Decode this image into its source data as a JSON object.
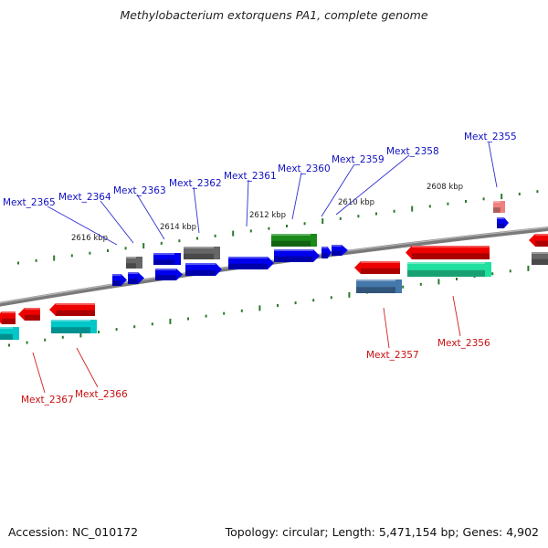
{
  "title": "Methylobacterium extorquens PA1, complete genome",
  "accession": "Accession: NC_010172",
  "topology": "Topology: circular; Length: 5,471,154 bp; Genes: 4,902",
  "kbp_labels": [
    "2616 kbp",
    "2614 kbp",
    "2612 kbp",
    "2610 kbp",
    "2608 kbp"
  ],
  "genes_top": [
    "Mext_2365",
    "Mext_2364",
    "Mext_2363",
    "Mext_2362",
    "Mext_2361",
    "Mext_2360",
    "Mext_2359",
    "Mext_2358",
    "Mext_2355"
  ],
  "genes_bottom": [
    "Mext_2367",
    "Mext_2366",
    "Mext_2357",
    "Mext_2356"
  ],
  "colors": {
    "top_label": "#1010c0",
    "bottom_label": "#c81010",
    "cds_blue": "#0000ee",
    "cds_grey": "#666666",
    "cds_green": "#1a8a1a",
    "cds_red": "#ee0000",
    "cds_cyan": "#00c8c8",
    "cds_steel": "#4477aa",
    "cds_seagreen": "#20e0a0",
    "cds_pink": "#f08080",
    "backbone": "#808080",
    "tick": "#2a7a2a"
  }
}
